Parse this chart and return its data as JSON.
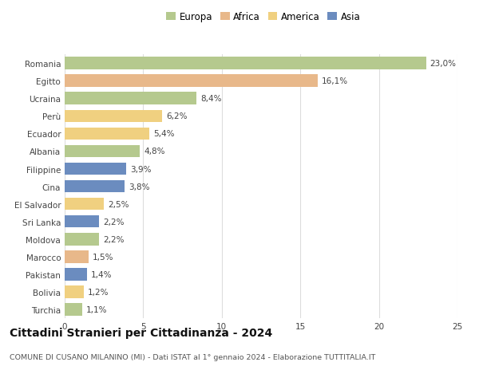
{
  "categories": [
    "Romania",
    "Egitto",
    "Ucraina",
    "Perù",
    "Ecuador",
    "Albania",
    "Filippine",
    "Cina",
    "El Salvador",
    "Sri Lanka",
    "Moldova",
    "Marocco",
    "Pakistan",
    "Bolivia",
    "Turchia"
  ],
  "values": [
    23.0,
    16.1,
    8.4,
    6.2,
    5.4,
    4.8,
    3.9,
    3.8,
    2.5,
    2.2,
    2.2,
    1.5,
    1.4,
    1.2,
    1.1
  ],
  "labels": [
    "23,0%",
    "16,1%",
    "8,4%",
    "6,2%",
    "5,4%",
    "4,8%",
    "3,9%",
    "3,8%",
    "2,5%",
    "2,2%",
    "2,2%",
    "1,5%",
    "1,4%",
    "1,2%",
    "1,1%"
  ],
  "colors": [
    "#b5c98e",
    "#e8b88a",
    "#b5c98e",
    "#f0d080",
    "#f0d080",
    "#b5c98e",
    "#6b8cbf",
    "#6b8cbf",
    "#f0d080",
    "#6b8cbf",
    "#b5c98e",
    "#e8b88a",
    "#6b8cbf",
    "#f0d080",
    "#b5c98e"
  ],
  "legend_labels": [
    "Europa",
    "Africa",
    "America",
    "Asia"
  ],
  "legend_colors": [
    "#b5c98e",
    "#e8b88a",
    "#f0d080",
    "#6b8cbf"
  ],
  "title": "Cittadini Stranieri per Cittadinanza - 2024",
  "subtitle": "COMUNE DI CUSANO MILANINO (MI) - Dati ISTAT al 1° gennaio 2024 - Elaborazione TUTTITALIA.IT",
  "xlim": [
    0,
    25
  ],
  "xticks": [
    0,
    5,
    10,
    15,
    20,
    25
  ],
  "background_color": "#ffffff",
  "grid_color": "#dddddd",
  "bar_height": 0.7,
  "label_fontsize": 7.5,
  "tick_fontsize": 7.5,
  "title_fontsize": 10,
  "subtitle_fontsize": 6.8,
  "legend_fontsize": 8.5
}
